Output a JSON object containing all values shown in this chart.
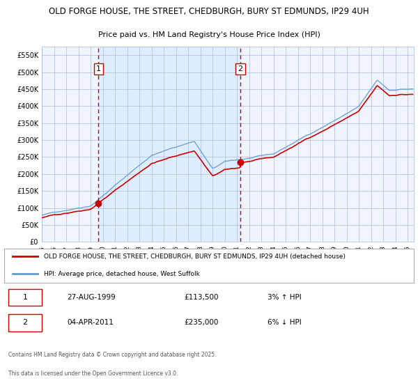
{
  "title_line1": "OLD FORGE HOUSE, THE STREET, CHEDBURGH, BURY ST EDMUNDS, IP29 4UH",
  "title_line2": "Price paid vs. HM Land Registry's House Price Index (HPI)",
  "purchase1_date": "27-AUG-1999",
  "purchase1_price": 113500,
  "purchase1_label": "1",
  "purchase1_year": 1999.65,
  "purchase2_date": "04-APR-2011",
  "purchase2_price": 235000,
  "purchase2_label": "2",
  "purchase2_year": 2011.27,
  "red_line_label": "OLD FORGE HOUSE, THE STREET, CHEDBURGH, BURY ST EDMUNDS, IP29 4UH (detached house)",
  "blue_line_label": "HPI: Average price, detached house, West Suffolk",
  "footer_line1": "Contains HM Land Registry data © Crown copyright and database right 2025.",
  "footer_line2": "This data is licensed under the Open Government Licence v3.0.",
  "red_color": "#cc0000",
  "blue_color": "#6699cc",
  "shaded_color": "#ddeeff",
  "grid_color": "#aabbdd",
  "plot_bg": "#f0f4ff",
  "ylim_min": 0,
  "ylim_max": 575000,
  "start_year": 1995,
  "end_year": 2025.5,
  "note1_date": "27-AUG-1999",
  "note1_price": "£113,500",
  "note1_hpi": "3% ↑ HPI",
  "note2_date": "04-APR-2011",
  "note2_price": "£235,000",
  "note2_hpi": "6% ↓ HPI"
}
